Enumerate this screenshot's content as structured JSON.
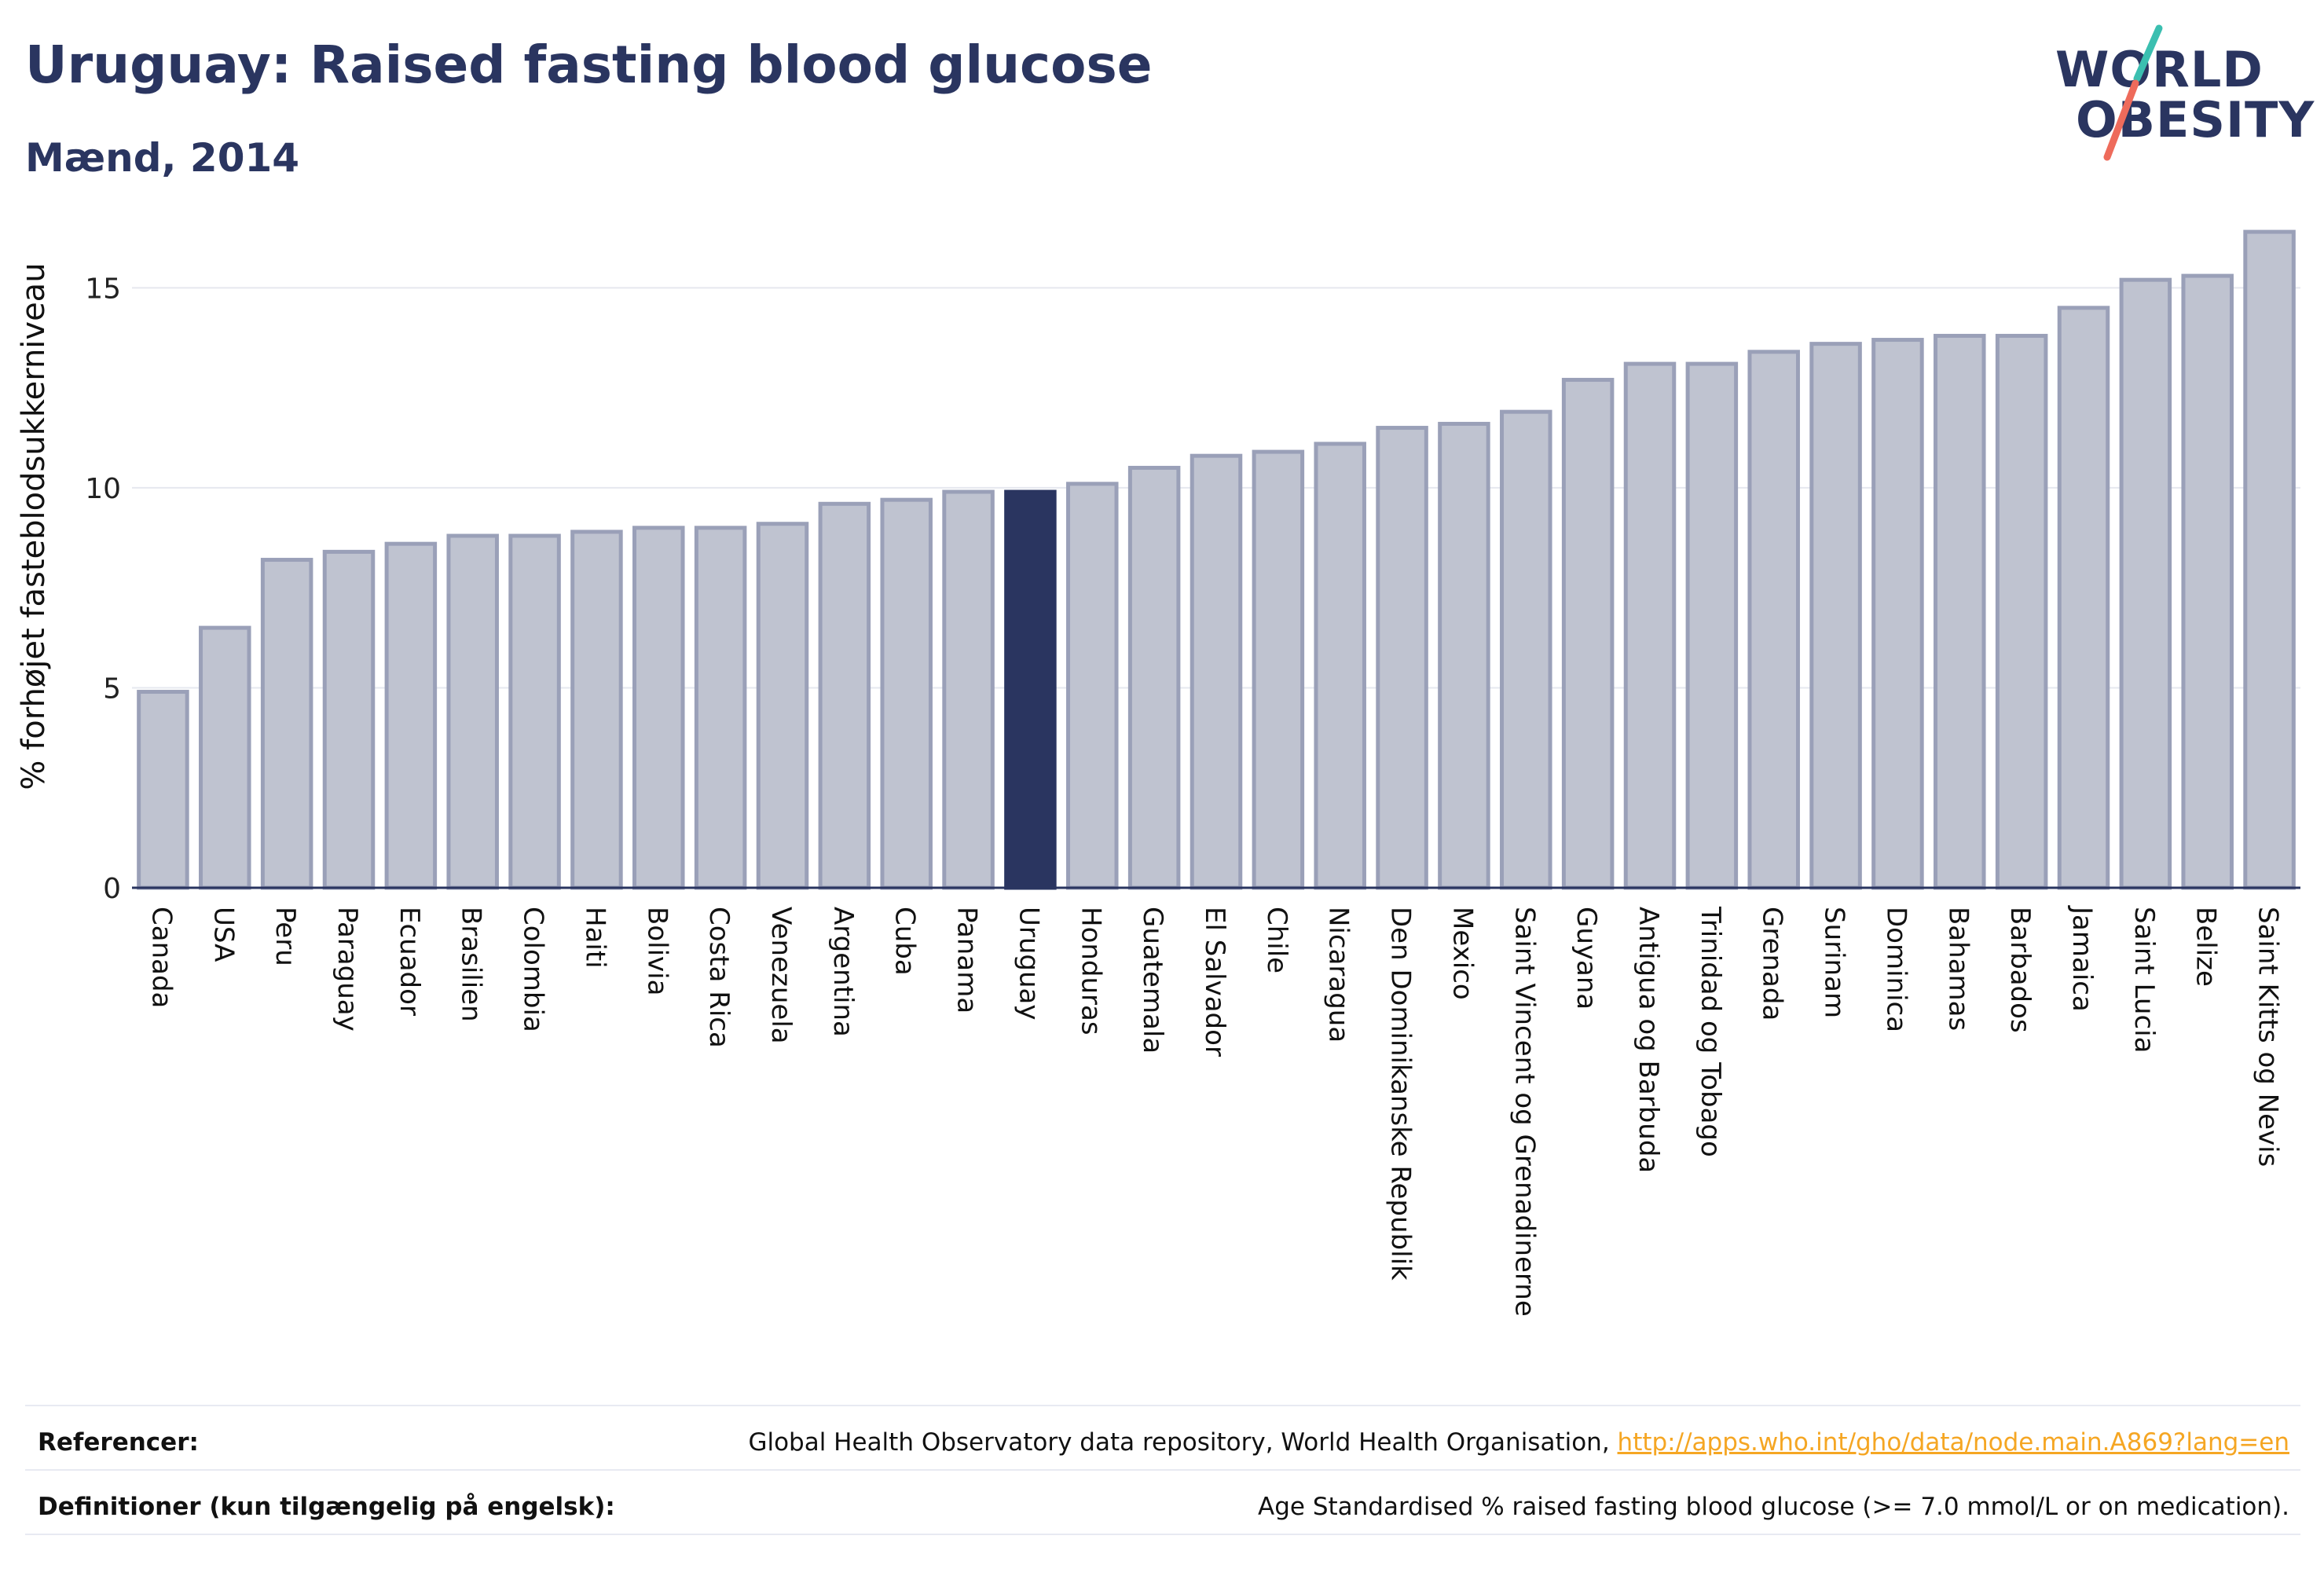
{
  "header": {
    "title": "Uruguay: Raised fasting blood glucose",
    "subtitle": "Mænd, 2014",
    "logo_line1": "WORLD",
    "logo_line2": "OBESITY"
  },
  "colors": {
    "title": "#2a3560",
    "bar_default": "#bfc3d0",
    "bar_border": "#9aa0b8",
    "bar_highlight": "#2a3560",
    "grid": "#e6e8ef",
    "link": "#f5a623",
    "logo_slash_teal": "#3bbfb0",
    "logo_slash_coral": "#ee6b5b"
  },
  "chart_data": {
    "type": "bar",
    "ylabel": "% forhøjet fasteblodsukkerniveau",
    "ylim": [
      0,
      16.5
    ],
    "yticks": [
      0,
      5,
      10,
      15
    ],
    "grid": true,
    "highlight": "Uruguay",
    "categories": [
      "Canada",
      "USA",
      "Peru",
      "Paraguay",
      "Ecuador",
      "Brasilien",
      "Colombia",
      "Haiti",
      "Bolivia",
      "Costa Rica",
      "Venezuela",
      "Argentina",
      "Cuba",
      "Panama",
      "Uruguay",
      "Honduras",
      "Guatemala",
      "El Salvador",
      "Chile",
      "Nicaragua",
      "Den Dominikanske Republik",
      "Mexico",
      "Saint Vincent og Grenadinerne",
      "Guyana",
      "Antigua og Barbuda",
      "Trinidad og Tobago",
      "Grenada",
      "Surinam",
      "Dominica",
      "Bahamas",
      "Barbados",
      "Jamaica",
      "Saint Lucia",
      "Belize",
      "Saint Kitts og Nevis"
    ],
    "values": [
      4.9,
      6.5,
      8.2,
      8.4,
      8.6,
      8.8,
      8.8,
      8.9,
      9.0,
      9.0,
      9.1,
      9.6,
      9.7,
      9.9,
      9.9,
      10.1,
      10.5,
      10.8,
      10.9,
      11.1,
      11.5,
      11.6,
      11.9,
      12.7,
      13.1,
      13.1,
      13.4,
      13.6,
      13.7,
      13.8,
      13.8,
      14.5,
      15.2,
      15.3,
      16.4
    ]
  },
  "footer": {
    "references_label": "Referencer:",
    "references_text": "Global Health Observatory data repository, World Health Organisation, ",
    "references_link": "http://apps.who.int/gho/data/node.main.A869?lang=en",
    "definitions_label": "Definitioner (kun tilgængelig på engelsk):",
    "definitions_text": "Age Standardised % raised fasting blood glucose (>= 7.0 mmol/L or on medication)."
  }
}
